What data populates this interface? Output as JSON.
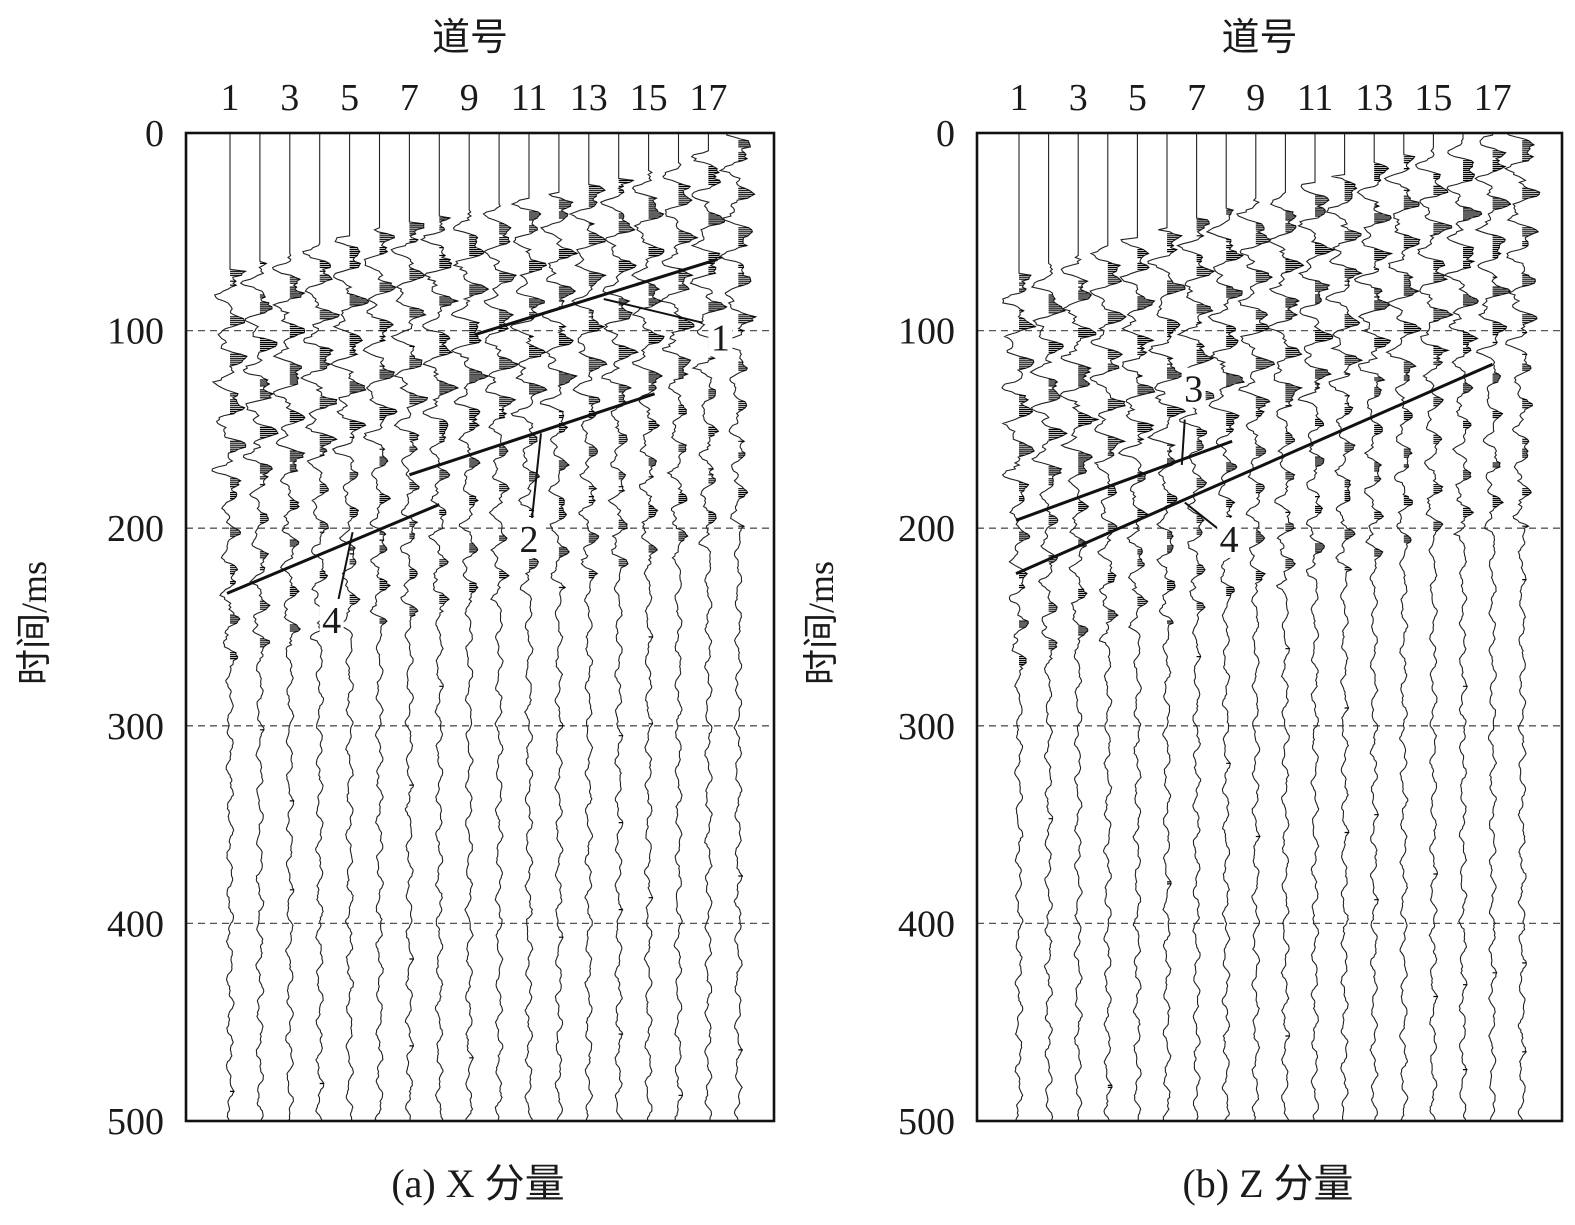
{
  "chart_data": [
    {
      "type": "seismic-record",
      "caption": "(a) X 分量",
      "xlabel": "道号",
      "ylabel": "时间/ms",
      "traces": [
        1,
        2,
        3,
        4,
        5,
        6,
        7,
        8,
        9,
        10,
        11,
        12,
        13,
        14,
        15,
        16,
        17,
        18
      ],
      "x_tick_labels": [
        "1",
        "3",
        "5",
        "7",
        "9",
        "11",
        "13",
        "15",
        "17"
      ],
      "y_tick_labels": [
        "0",
        "100",
        "200",
        "300",
        "400",
        "500"
      ],
      "ylim": [
        0,
        500
      ],
      "gridlines_ms": [
        100,
        200,
        300,
        400
      ],
      "first_break_ms": [
        70,
        66,
        62,
        57,
        53,
        49,
        46,
        43,
        40,
        37,
        34,
        31,
        27,
        24,
        20,
        16,
        10,
        0
      ],
      "events": [
        {
          "label": "1",
          "from": {
            "trace": 9.2,
            "time_ms": 102
          },
          "to": {
            "trace": 17.3,
            "time_ms": 64
          }
        },
        {
          "label": "2",
          "from": {
            "trace": 7.0,
            "time_ms": 173
          },
          "to": {
            "trace": 15.2,
            "time_ms": 132
          }
        },
        {
          "label": "4",
          "from": {
            "trace": 0.9,
            "time_ms": 233
          },
          "to": {
            "trace": 8.0,
            "time_ms": 188
          }
        }
      ],
      "annotations": [
        {
          "label": "1",
          "text_trace": 17.4,
          "text_ms": 110,
          "leader_from": {
            "trace": 13.5,
            "time_ms": 84
          },
          "leader_to": {
            "trace": 16.8,
            "time_ms": 96
          }
        },
        {
          "label": "2",
          "text_trace": 11.0,
          "text_ms": 212,
          "leader_from": {
            "trace": 11.4,
            "time_ms": 152
          },
          "leader_to": {
            "trace": 11.1,
            "time_ms": 195
          }
        },
        {
          "label": "4",
          "text_trace": 4.4,
          "text_ms": 253,
          "leader_from": {
            "trace": 5.1,
            "time_ms": 202
          },
          "leader_to": {
            "trace": 4.6,
            "time_ms": 238
          }
        }
      ]
    },
    {
      "type": "seismic-record",
      "caption": "(b) Z 分量",
      "xlabel": "道号",
      "ylabel": "时间/ms",
      "traces": [
        1,
        2,
        3,
        4,
        5,
        6,
        7,
        8,
        9,
        10,
        11,
        12,
        13,
        14,
        15,
        16,
        17,
        18
      ],
      "x_tick_labels": [
        "1",
        "3",
        "5",
        "7",
        "9",
        "11",
        "13",
        "15",
        "17"
      ],
      "y_tick_labels": [
        "0",
        "100",
        "200",
        "300",
        "400",
        "500"
      ],
      "ylim": [
        0,
        500
      ],
      "gridlines_ms": [
        100,
        200,
        300,
        400
      ],
      "first_break_ms": [
        72,
        67,
        63,
        58,
        54,
        49,
        44,
        39,
        34,
        31,
        26,
        22,
        16,
        12,
        8,
        4,
        2,
        0
      ],
      "events": [
        {
          "label": "3",
          "from": {
            "trace": 0.9,
            "time_ms": 196
          },
          "to": {
            "trace": 8.2,
            "time_ms": 156
          }
        },
        {
          "label": "4",
          "from": {
            "trace": 0.9,
            "time_ms": 223
          },
          "to": {
            "trace": 17.0,
            "time_ms": 117
          }
        }
      ],
      "annotations": [
        {
          "label": "3",
          "text_trace": 6.9,
          "text_ms": 136,
          "leader_from": {
            "trace": 6.6,
            "time_ms": 145
          },
          "leader_to": {
            "trace": 6.5,
            "time_ms": 168
          }
        },
        {
          "label": "4",
          "text_trace": 8.1,
          "text_ms": 212,
          "leader_from": {
            "trace": 6.6,
            "time_ms": 187
          },
          "leader_to": {
            "trace": 7.7,
            "time_ms": 200
          }
        }
      ]
    }
  ]
}
